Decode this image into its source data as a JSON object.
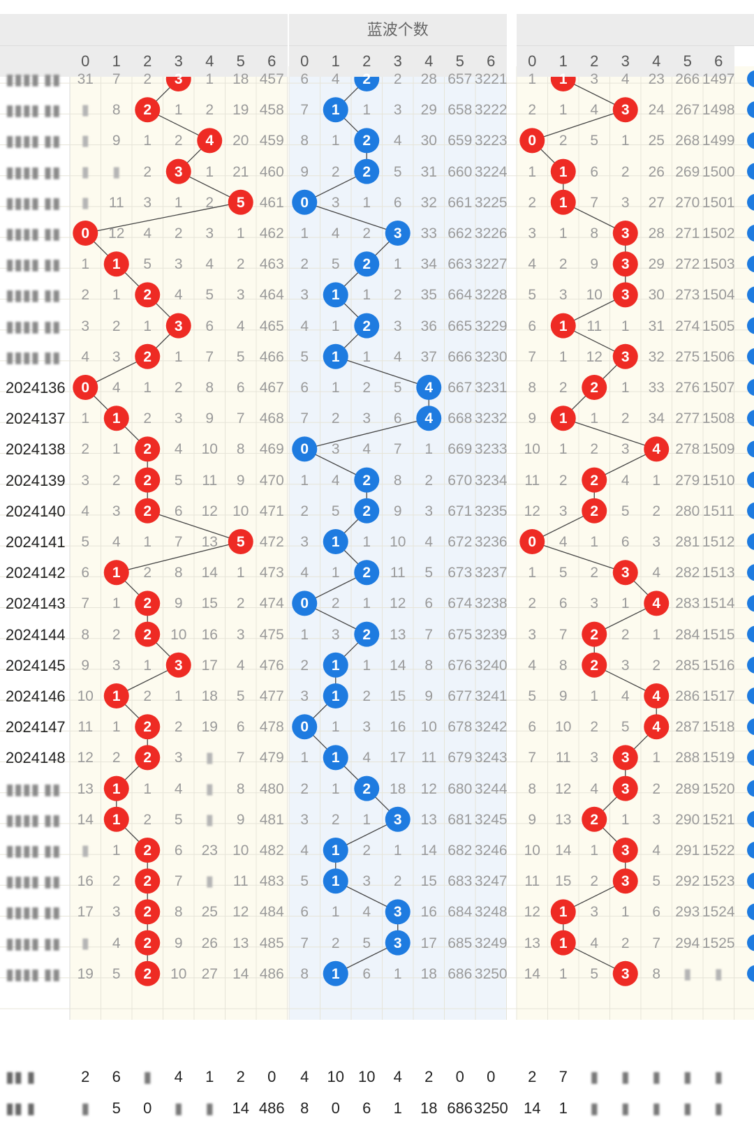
{
  "header": {
    "group_title": "蓝波个数"
  },
  "colors": {
    "red": "#ee2b24",
    "blue": "#1e7be0",
    "bg_left": "#fdfbef",
    "bg_mid": "#eef4fb",
    "bg_right": "#fdfbef",
    "grid": "#e6e4d8"
  },
  "group_a_labels": [
    "0",
    "1",
    "2",
    "3",
    "4",
    "5",
    "6"
  ],
  "group_b_labels": [
    "0",
    "1",
    "2",
    "3",
    "4",
    "5",
    "6"
  ],
  "group_c_labels": [
    "0",
    "1",
    "2",
    "3",
    "4",
    "5",
    "6"
  ],
  "rows": [
    {
      "label": "",
      "a": [
        "31",
        "7",
        "2",
        "3",
        "1",
        "18",
        "457"
      ],
      "b": [
        "6",
        "4",
        "2",
        "2",
        "28",
        "657",
        "3221"
      ],
      "c": [
        "1",
        "1",
        "3",
        "4",
        "23",
        "266",
        "1497"
      ],
      "ra": 3,
      "rb": 2,
      "rc": 1
    },
    {
      "label": "",
      "a": [
        "",
        "8",
        "2",
        "1",
        "2",
        "19",
        "458"
      ],
      "b": [
        "7",
        "1",
        "1",
        "3",
        "29",
        "658",
        "3222"
      ],
      "c": [
        "2",
        "1",
        "4",
        "3",
        "24",
        "267",
        "1498"
      ],
      "ra": 2,
      "rb": 1,
      "rc": 3
    },
    {
      "label": "",
      "a": [
        "",
        "9",
        "1",
        "2",
        "4",
        "20",
        "459"
      ],
      "b": [
        "8",
        "1",
        "2",
        "4",
        "30",
        "659",
        "3223"
      ],
      "c": [
        "0",
        "2",
        "5",
        "1",
        "25",
        "268",
        "1499"
      ],
      "ra": 4,
      "rb": 2,
      "rc": 0
    },
    {
      "label": "",
      "a": [
        "",
        "",
        "2",
        "3",
        "1",
        "21",
        "460"
      ],
      "b": [
        "9",
        "2",
        "2",
        "5",
        "31",
        "660",
        "3224"
      ],
      "c": [
        "1",
        "1",
        "6",
        "2",
        "26",
        "269",
        "1500"
      ],
      "ra": 3,
      "rb": 2,
      "rc": 1
    },
    {
      "label": "",
      "a": [
        "",
        "11",
        "3",
        "1",
        "2",
        "5",
        "461"
      ],
      "b": [
        "0",
        "3",
        "1",
        "6",
        "32",
        "661",
        "3225"
      ],
      "c": [
        "2",
        "1",
        "7",
        "3",
        "27",
        "270",
        "1501"
      ],
      "ra": 5,
      "rb": 0,
      "rc": 1
    },
    {
      "label": "",
      "a": [
        "0",
        "12",
        "4",
        "2",
        "3",
        "1",
        "462"
      ],
      "b": [
        "1",
        "4",
        "2",
        "3",
        "33",
        "662",
        "3226"
      ],
      "c": [
        "3",
        "1",
        "8",
        "3",
        "28",
        "271",
        "1502"
      ],
      "ra": 0,
      "rb": 3,
      "rc": 3
    },
    {
      "label": "",
      "a": [
        "1",
        "1",
        "5",
        "3",
        "4",
        "2",
        "463"
      ],
      "b": [
        "2",
        "5",
        "2",
        "1",
        "34",
        "663",
        "3227"
      ],
      "c": [
        "4",
        "2",
        "9",
        "3",
        "29",
        "272",
        "1503"
      ],
      "ra": 1,
      "rb": 2,
      "rc": 3
    },
    {
      "label": "",
      "a": [
        "2",
        "1",
        "2",
        "4",
        "5",
        "3",
        "464"
      ],
      "b": [
        "3",
        "1",
        "1",
        "2",
        "35",
        "664",
        "3228"
      ],
      "c": [
        "5",
        "3",
        "10",
        "3",
        "30",
        "273",
        "1504"
      ],
      "ra": 2,
      "rb": 1,
      "rc": 3
    },
    {
      "label": "",
      "a": [
        "3",
        "2",
        "1",
        "3",
        "6",
        "4",
        "465"
      ],
      "b": [
        "4",
        "1",
        "2",
        "3",
        "36",
        "665",
        "3229"
      ],
      "c": [
        "6",
        "1",
        "11",
        "1",
        "31",
        "274",
        "1505"
      ],
      "ra": 3,
      "rb": 2,
      "rc": 1
    },
    {
      "label": "",
      "a": [
        "4",
        "3",
        "2",
        "1",
        "7",
        "5",
        "466"
      ],
      "b": [
        "5",
        "1",
        "1",
        "4",
        "37",
        "666",
        "3230"
      ],
      "c": [
        "7",
        "1",
        "12",
        "3",
        "32",
        "275",
        "1506"
      ],
      "ra": 2,
      "rb": 1,
      "rc": 3
    },
    {
      "label": "2024136",
      "a": [
        "0",
        "4",
        "1",
        "2",
        "8",
        "6",
        "467"
      ],
      "b": [
        "6",
        "1",
        "2",
        "5",
        "4",
        "667",
        "3231"
      ],
      "c": [
        "8",
        "2",
        "2",
        "1",
        "33",
        "276",
        "1507"
      ],
      "ra": 0,
      "rb": 4,
      "rc": 2
    },
    {
      "label": "2024137",
      "a": [
        "1",
        "1",
        "2",
        "3",
        "9",
        "7",
        "468"
      ],
      "b": [
        "7",
        "2",
        "3",
        "6",
        "4",
        "668",
        "3232"
      ],
      "c": [
        "9",
        "1",
        "1",
        "2",
        "34",
        "277",
        "1508"
      ],
      "ra": 1,
      "rb": 4,
      "rc": 1
    },
    {
      "label": "2024138",
      "a": [
        "2",
        "1",
        "2",
        "4",
        "10",
        "8",
        "469"
      ],
      "b": [
        "0",
        "3",
        "4",
        "7",
        "1",
        "669",
        "3233"
      ],
      "c": [
        "10",
        "1",
        "2",
        "3",
        "4",
        "278",
        "1509"
      ],
      "ra": 2,
      "rb": 0,
      "rc": 4
    },
    {
      "label": "2024139",
      "a": [
        "3",
        "2",
        "2",
        "5",
        "11",
        "9",
        "470"
      ],
      "b": [
        "1",
        "4",
        "2",
        "8",
        "2",
        "670",
        "3234"
      ],
      "c": [
        "11",
        "2",
        "2",
        "4",
        "1",
        "279",
        "1510"
      ],
      "ra": 2,
      "rb": 2,
      "rc": 2
    },
    {
      "label": "2024140",
      "a": [
        "4",
        "3",
        "2",
        "6",
        "12",
        "10",
        "471"
      ],
      "b": [
        "2",
        "5",
        "2",
        "9",
        "3",
        "671",
        "3235"
      ],
      "c": [
        "12",
        "3",
        "2",
        "5",
        "2",
        "280",
        "1511"
      ],
      "ra": 2,
      "rb": 2,
      "rc": 2
    },
    {
      "label": "2024141",
      "a": [
        "5",
        "4",
        "1",
        "7",
        "13",
        "5",
        "472"
      ],
      "b": [
        "3",
        "1",
        "1",
        "10",
        "4",
        "672",
        "3236"
      ],
      "c": [
        "0",
        "4",
        "1",
        "6",
        "3",
        "281",
        "1512"
      ],
      "ra": 5,
      "rb": 1,
      "rc": 0
    },
    {
      "label": "2024142",
      "a": [
        "6",
        "1",
        "2",
        "8",
        "14",
        "1",
        "473"
      ],
      "b": [
        "4",
        "1",
        "2",
        "11",
        "5",
        "673",
        "3237"
      ],
      "c": [
        "1",
        "5",
        "2",
        "3",
        "4",
        "282",
        "1513"
      ],
      "ra": 1,
      "rb": 2,
      "rc": 3
    },
    {
      "label": "2024143",
      "a": [
        "7",
        "1",
        "2",
        "9",
        "15",
        "2",
        "474"
      ],
      "b": [
        "0",
        "2",
        "1",
        "12",
        "6",
        "674",
        "3238"
      ],
      "c": [
        "2",
        "6",
        "3",
        "1",
        "4",
        "283",
        "1514"
      ],
      "ra": 2,
      "rb": 0,
      "rc": 4
    },
    {
      "label": "2024144",
      "a": [
        "8",
        "2",
        "2",
        "10",
        "16",
        "3",
        "475"
      ],
      "b": [
        "1",
        "3",
        "2",
        "13",
        "7",
        "675",
        "3239"
      ],
      "c": [
        "3",
        "7",
        "2",
        "2",
        "1",
        "284",
        "1515"
      ],
      "ra": 2,
      "rb": 2,
      "rc": 2
    },
    {
      "label": "2024145",
      "a": [
        "9",
        "3",
        "1",
        "3",
        "17",
        "4",
        "476"
      ],
      "b": [
        "2",
        "1",
        "1",
        "14",
        "8",
        "676",
        "3240"
      ],
      "c": [
        "4",
        "8",
        "2",
        "3",
        "2",
        "285",
        "1516"
      ],
      "ra": 3,
      "rb": 1,
      "rc": 2
    },
    {
      "label": "2024146",
      "a": [
        "10",
        "1",
        "2",
        "1",
        "18",
        "5",
        "477"
      ],
      "b": [
        "3",
        "1",
        "2",
        "15",
        "9",
        "677",
        "3241"
      ],
      "c": [
        "5",
        "9",
        "1",
        "4",
        "4",
        "286",
        "1517"
      ],
      "ra": 1,
      "rb": 1,
      "rc": 4
    },
    {
      "label": "2024147",
      "a": [
        "11",
        "1",
        "2",
        "2",
        "19",
        "6",
        "478"
      ],
      "b": [
        "0",
        "1",
        "3",
        "16",
        "10",
        "678",
        "3242"
      ],
      "c": [
        "6",
        "10",
        "2",
        "5",
        "4",
        "287",
        "1518"
      ],
      "ra": 2,
      "rb": 0,
      "rc": 4
    },
    {
      "label": "2024148",
      "a": [
        "12",
        "2",
        "2",
        "3",
        "",
        "7",
        "479"
      ],
      "b": [
        "1",
        "1",
        "4",
        "17",
        "11",
        "679",
        "3243"
      ],
      "c": [
        "7",
        "11",
        "3",
        "3",
        "1",
        "288",
        "1519"
      ],
      "ra": 2,
      "rb": 1,
      "rc": 3
    },
    {
      "label": "",
      "a": [
        "13",
        "1",
        "1",
        "4",
        "",
        "8",
        "480"
      ],
      "b": [
        "2",
        "1",
        "2",
        "18",
        "12",
        "680",
        "3244"
      ],
      "c": [
        "8",
        "12",
        "4",
        "3",
        "2",
        "289",
        "1520"
      ],
      "ra": 1,
      "rb": 2,
      "rc": 3
    },
    {
      "label": "",
      "a": [
        "14",
        "1",
        "2",
        "5",
        "",
        "9",
        "481"
      ],
      "b": [
        "3",
        "2",
        "1",
        "3",
        "13",
        "681",
        "3245"
      ],
      "c": [
        "9",
        "13",
        "2",
        "1",
        "3",
        "290",
        "1521"
      ],
      "ra": 1,
      "rb": 3,
      "rc": 2
    },
    {
      "label": "",
      "a": [
        "",
        "1",
        "2",
        "6",
        "23",
        "10",
        "482"
      ],
      "b": [
        "4",
        "1",
        "2",
        "1",
        "14",
        "682",
        "3246"
      ],
      "c": [
        "10",
        "14",
        "1",
        "3",
        "4",
        "291",
        "1522"
      ],
      "ra": 2,
      "rb": 1,
      "rc": 3
    },
    {
      "label": "",
      "a": [
        "16",
        "2",
        "2",
        "7",
        "",
        "11",
        "483"
      ],
      "b": [
        "5",
        "1",
        "3",
        "2",
        "15",
        "683",
        "3247"
      ],
      "c": [
        "11",
        "15",
        "2",
        "3",
        "5",
        "292",
        "1523"
      ],
      "ra": 2,
      "rb": 1,
      "rc": 3
    },
    {
      "label": "",
      "a": [
        "17",
        "3",
        "2",
        "8",
        "25",
        "12",
        "484"
      ],
      "b": [
        "6",
        "1",
        "4",
        "3",
        "16",
        "684",
        "3248"
      ],
      "c": [
        "12",
        "1",
        "3",
        "1",
        "6",
        "293",
        "1524"
      ],
      "ra": 2,
      "rb": 3,
      "rc": 1
    },
    {
      "label": "",
      "a": [
        "",
        "4",
        "2",
        "9",
        "26",
        "13",
        "485"
      ],
      "b": [
        "7",
        "2",
        "5",
        "3",
        "17",
        "685",
        "3249"
      ],
      "c": [
        "13",
        "1",
        "4",
        "2",
        "7",
        "294",
        "1525"
      ],
      "ra": 2,
      "rb": 3,
      "rc": 1
    },
    {
      "label": "",
      "a": [
        "19",
        "5",
        "2",
        "10",
        "27",
        "14",
        "486"
      ],
      "b": [
        "8",
        "1",
        "6",
        "1",
        "18",
        "686",
        "3250"
      ],
      "c": [
        "14",
        "1",
        "5",
        "3",
        "8",
        "",
        ""
      ],
      "ra": 2,
      "rb": 1,
      "rc": 3
    }
  ],
  "stats": [
    {
      "label": "",
      "vals": [
        "2",
        "6",
        "",
        "4",
        "1",
        "2",
        "0",
        "4",
        "10",
        "10",
        "4",
        "2",
        "0",
        "0",
        "2",
        "7",
        "",
        "",
        "",
        "",
        ""
      ]
    },
    {
      "label": "",
      "vals": [
        "",
        "5",
        "0",
        "",
        "",
        "14",
        "486",
        "8",
        "0",
        "6",
        "1",
        "18",
        "686",
        "3250",
        "14",
        "1",
        "",
        "",
        "",
        "",
        ""
      ]
    }
  ]
}
